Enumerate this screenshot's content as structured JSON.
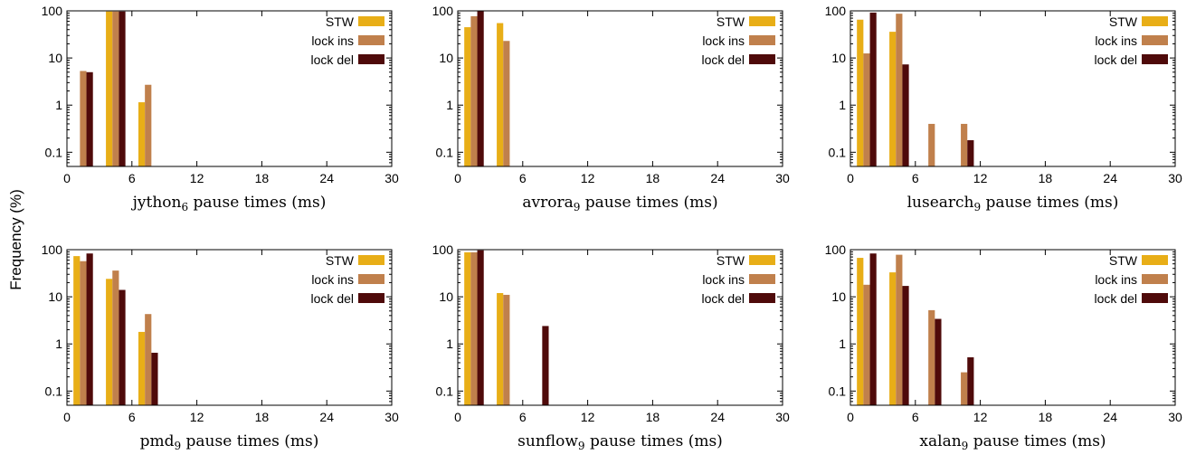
{
  "figure": {
    "ylabel": "Frequency (%)"
  },
  "colors": {
    "STW": "#E8AE17",
    "lock ins": "#C0804C",
    "lock del": "#4F0A0A",
    "axis": "#000000"
  },
  "chart_data": [
    {
      "type": "bar",
      "xlabel_main": "jython",
      "xlabel_sub": "6",
      "xlabel_rest": " pause times (ms)",
      "xlim": [
        0,
        30
      ],
      "xticks": [
        0,
        6,
        12,
        18,
        24,
        30
      ],
      "yscale": "log",
      "ylim": [
        0.05,
        100
      ],
      "yticks": [
        0.1,
        1,
        10,
        100
      ],
      "ytick_labels": [
        "0.1",
        "1",
        "10",
        "100"
      ],
      "legend": "top-right",
      "bar_width": 0.6,
      "categories": [
        1.5,
        4.5,
        7.5,
        10.5
      ],
      "series": [
        {
          "name": "STW",
          "values": [
            null,
            97,
            1.15,
            null
          ]
        },
        {
          "name": "lock ins",
          "values": [
            5.3,
            97,
            2.7,
            null
          ]
        },
        {
          "name": "lock del",
          "values": [
            5.0,
            97,
            null,
            null
          ]
        }
      ]
    },
    {
      "type": "bar",
      "xlabel_main": "avrora",
      "xlabel_sub": "9",
      "xlabel_rest": " pause times (ms)",
      "xlim": [
        0,
        30
      ],
      "xticks": [
        0,
        6,
        12,
        18,
        24,
        30
      ],
      "yscale": "log",
      "ylim": [
        0.05,
        100
      ],
      "yticks": [
        0.1,
        1,
        10,
        100
      ],
      "ytick_labels": [
        "0.1",
        "1",
        "10",
        "100"
      ],
      "legend": "top-right",
      "bar_width": 0.6,
      "categories": [
        1.5,
        4.5,
        7.5,
        10.5
      ],
      "series": [
        {
          "name": "STW",
          "values": [
            45,
            55,
            null,
            null
          ]
        },
        {
          "name": "lock ins",
          "values": [
            77,
            23,
            null,
            null
          ]
        },
        {
          "name": "lock del",
          "values": [
            99,
            null,
            null,
            null
          ]
        }
      ]
    },
    {
      "type": "bar",
      "xlabel_main": "lusearch",
      "xlabel_sub": "9",
      "xlabel_rest": " pause times (ms)",
      "xlim": [
        0,
        30
      ],
      "xticks": [
        0,
        6,
        12,
        18,
        24,
        30
      ],
      "yscale": "log",
      "ylim": [
        0.05,
        100
      ],
      "yticks": [
        0.1,
        1,
        10,
        100
      ],
      "ytick_labels": [
        "0.1",
        "1",
        "10",
        "100"
      ],
      "legend": "top-right",
      "bar_width": 0.6,
      "categories": [
        1.5,
        4.5,
        7.5,
        10.5
      ],
      "series": [
        {
          "name": "STW",
          "values": [
            65,
            36,
            null,
            null
          ]
        },
        {
          "name": "lock ins",
          "values": [
            12.5,
            87,
            0.4,
            0.4
          ]
        },
        {
          "name": "lock del",
          "values": [
            92,
            7.3,
            null,
            0.18
          ]
        }
      ]
    },
    {
      "type": "bar",
      "xlabel_main": "pmd",
      "xlabel_sub": "9",
      "xlabel_rest": " pause times (ms)",
      "xlim": [
        0,
        30
      ],
      "xticks": [
        0,
        6,
        12,
        18,
        24,
        30
      ],
      "yscale": "log",
      "ylim": [
        0.05,
        100
      ],
      "yticks": [
        0.1,
        1,
        10,
        100
      ],
      "ytick_labels": [
        "0.1",
        "1",
        "10",
        "100"
      ],
      "legend": "top-right",
      "bar_width": 0.6,
      "categories": [
        1.5,
        4.5,
        7.5,
        10.5
      ],
      "series": [
        {
          "name": "STW",
          "values": [
            73,
            24,
            1.8,
            null
          ]
        },
        {
          "name": "lock ins",
          "values": [
            57,
            36,
            4.3,
            null
          ]
        },
        {
          "name": "lock del",
          "values": [
            83,
            14,
            0.65,
            null
          ]
        }
      ]
    },
    {
      "type": "bar",
      "xlabel_main": "sunflow",
      "xlabel_sub": "9",
      "xlabel_rest": " pause times (ms)",
      "xlim": [
        0,
        30
      ],
      "xticks": [
        0,
        6,
        12,
        18,
        24,
        30
      ],
      "yscale": "log",
      "ylim": [
        0.05,
        100
      ],
      "yticks": [
        0.1,
        1,
        10,
        100
      ],
      "ytick_labels": [
        "0.1",
        "1",
        "10",
        "100"
      ],
      "legend": "top-right",
      "bar_width": 0.6,
      "categories": [
        1.5,
        4.5,
        7.5,
        10.5
      ],
      "series": [
        {
          "name": "STW",
          "values": [
            88,
            12,
            null,
            null
          ]
        },
        {
          "name": "lock ins",
          "values": [
            88,
            11,
            null,
            null
          ]
        },
        {
          "name": "lock del",
          "values": [
            97,
            null,
            2.4,
            null
          ]
        }
      ]
    },
    {
      "type": "bar",
      "xlabel_main": "xalan",
      "xlabel_sub": "9",
      "xlabel_rest": " pause times (ms)",
      "xlim": [
        0,
        30
      ],
      "xticks": [
        0,
        6,
        12,
        18,
        24,
        30
      ],
      "yscale": "log",
      "ylim": [
        0.05,
        100
      ],
      "yticks": [
        0.1,
        1,
        10,
        100
      ],
      "ytick_labels": [
        "0.1",
        "1",
        "10",
        "100"
      ],
      "legend": "top-right",
      "bar_width": 0.6,
      "categories": [
        1.5,
        4.5,
        7.5,
        10.5
      ],
      "series": [
        {
          "name": "STW",
          "values": [
            67,
            33,
            null,
            null
          ]
        },
        {
          "name": "lock ins",
          "values": [
            18,
            78,
            5.2,
            0.25
          ]
        },
        {
          "name": "lock del",
          "values": [
            83,
            17,
            3.4,
            0.52
          ]
        }
      ]
    }
  ]
}
